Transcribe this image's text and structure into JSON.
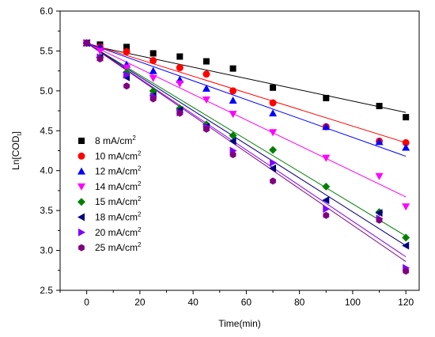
{
  "chart_data": {
    "type": "scatter",
    "title": "",
    "xlabel": "Time(min)",
    "ylabel": {
      "main": "Ln[COD",
      "sub": "t",
      "close": "]"
    },
    "xlim": [
      -10,
      125
    ],
    "ylim": [
      2.5,
      6.0
    ],
    "xticks": [
      "0",
      "20",
      "40",
      "60",
      "80",
      "100",
      "120"
    ],
    "xtick_values": [
      0,
      20,
      40,
      60,
      80,
      100,
      120
    ],
    "yticks": [
      "2.5",
      "3.0",
      "3.5",
      "4.0",
      "4.5",
      "5.0",
      "5.5",
      "6.0"
    ],
    "ytick_values": [
      2.5,
      3.0,
      3.5,
      4.0,
      4.5,
      5.0,
      5.5,
      6.0
    ],
    "grid": false,
    "legend": "center-left",
    "series": [
      {
        "name": "8 mA/cm",
        "unit_sup": "2",
        "marker": "square",
        "color": "#000000",
        "x": [
          0,
          5,
          15,
          25,
          35,
          45,
          55,
          70,
          90,
          110,
          120
        ],
        "y": [
          5.6,
          5.58,
          5.55,
          5.47,
          5.43,
          5.37,
          5.28,
          5.04,
          4.91,
          4.81,
          4.67
        ],
        "fit": [
          5.58,
          4.73
        ]
      },
      {
        "name": "10 mA/cm",
        "unit_sup": "2",
        "marker": "circle",
        "color": "#ff0000",
        "x": [
          0,
          5,
          15,
          25,
          35,
          45,
          55,
          70,
          90,
          110,
          120
        ],
        "y": [
          5.6,
          5.55,
          5.49,
          5.38,
          5.29,
          5.21,
          5.0,
          4.85,
          4.55,
          4.37,
          4.35
        ],
        "fit": [
          5.6,
          4.35
        ]
      },
      {
        "name": "12 mA/cm",
        "unit_sup": "2",
        "marker": "triangle-up",
        "color": "#0000ff",
        "x": [
          0,
          5,
          15,
          25,
          35,
          45,
          55,
          70,
          90,
          110,
          120
        ],
        "y": [
          5.6,
          5.55,
          5.33,
          5.25,
          5.14,
          5.03,
          4.88,
          4.72,
          4.55,
          4.36,
          4.29
        ],
        "fit": [
          5.6,
          4.18
        ]
      },
      {
        "name": "14 mA/cm",
        "unit_sup": "2",
        "marker": "triangle-down",
        "color": "#ff00ff",
        "x": [
          0,
          5,
          15,
          25,
          35,
          45,
          55,
          70,
          90,
          110,
          120
        ],
        "y": [
          5.6,
          5.5,
          5.29,
          5.16,
          5.09,
          4.89,
          4.71,
          4.48,
          4.16,
          3.93,
          3.55
        ],
        "fit": [
          5.6,
          3.67
        ]
      },
      {
        "name": "15 mA/cm",
        "unit_sup": "2",
        "marker": "diamond",
        "color": "#008000",
        "x": [
          0,
          5,
          15,
          25,
          35,
          45,
          55,
          70,
          90,
          110,
          120
        ],
        "y": [
          5.6,
          5.42,
          5.23,
          5.0,
          4.78,
          4.58,
          4.44,
          4.26,
          3.8,
          3.48,
          3.16
        ],
        "fit": [
          5.6,
          3.18
        ]
      },
      {
        "name": "18 mA/cm",
        "unit_sup": "2",
        "marker": "triangle-left",
        "color": "#000080",
        "x": [
          0,
          5,
          15,
          25,
          35,
          45,
          55,
          70,
          90,
          110,
          120
        ],
        "y": [
          5.6,
          5.42,
          5.17,
          4.94,
          4.76,
          4.55,
          4.37,
          4.03,
          3.63,
          3.47,
          3.06
        ],
        "fit": [
          5.6,
          3.06
        ]
      },
      {
        "name": "20 mA/cm",
        "unit_sup": "2",
        "marker": "triangle-right",
        "color": "#8000ff",
        "x": [
          0,
          5,
          15,
          25,
          35,
          45,
          55,
          70,
          90,
          110,
          120
        ],
        "y": [
          5.6,
          5.42,
          5.2,
          4.93,
          4.73,
          4.55,
          4.25,
          4.1,
          3.52,
          3.4,
          2.78
        ],
        "fit": [
          5.6,
          2.92
        ]
      },
      {
        "name": "25 mA/cm",
        "unit_sup": "2",
        "marker": "hexagon",
        "color": "#800080",
        "x": [
          0,
          5,
          15,
          25,
          35,
          45,
          55,
          70,
          90,
          110,
          120
        ],
        "y": [
          5.6,
          5.4,
          5.06,
          4.9,
          4.72,
          4.52,
          4.2,
          3.87,
          3.44,
          3.38,
          2.74
        ],
        "fit": [
          5.6,
          2.86
        ]
      }
    ]
  }
}
